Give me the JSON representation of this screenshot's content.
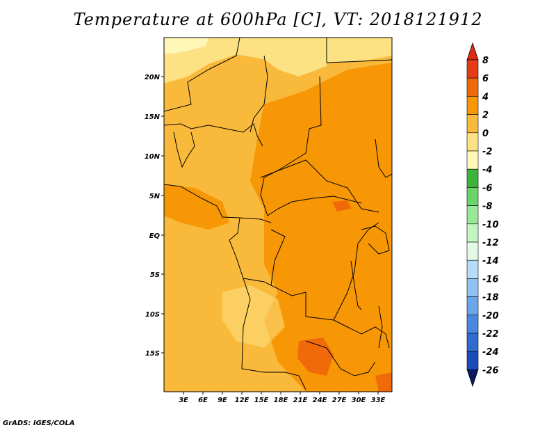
{
  "title": "Temperature at 600hPa [C], VT: 2018121912",
  "footer": "GrADS: IGES/COLA",
  "map": {
    "lat_labels": [
      "20N",
      "15N",
      "10N",
      "5N",
      "EQ",
      "5S",
      "10S",
      "15S"
    ],
    "lon_labels": [
      "3E",
      "6E",
      "9E",
      "12E",
      "15E",
      "18E",
      "21E",
      "24E",
      "27E",
      "30E",
      "33E"
    ]
  },
  "colorbar": {
    "labels": [
      "8",
      "6",
      "4",
      "2",
      "0",
      "-2",
      "-4",
      "-6",
      "-8",
      "-10",
      "-12",
      "-14",
      "-16",
      "-18",
      "-20",
      "-22",
      "-24",
      "-26"
    ],
    "colors": [
      "#e63b17",
      "#f06a0a",
      "#f79706",
      "#f9b93b",
      "#fde283",
      "#fff7b7",
      "#3cb43a",
      "#69d468",
      "#98e895",
      "#c3f6bf",
      "#e3fbe6",
      "#b5dcf8",
      "#8fc2f4",
      "#6aa6ec",
      "#4a88e0",
      "#2f6bd0",
      "#1a4cbb",
      "#0d2f9a"
    ],
    "top_color": "#e02a14",
    "bottom_color": "#0a1a60"
  }
}
